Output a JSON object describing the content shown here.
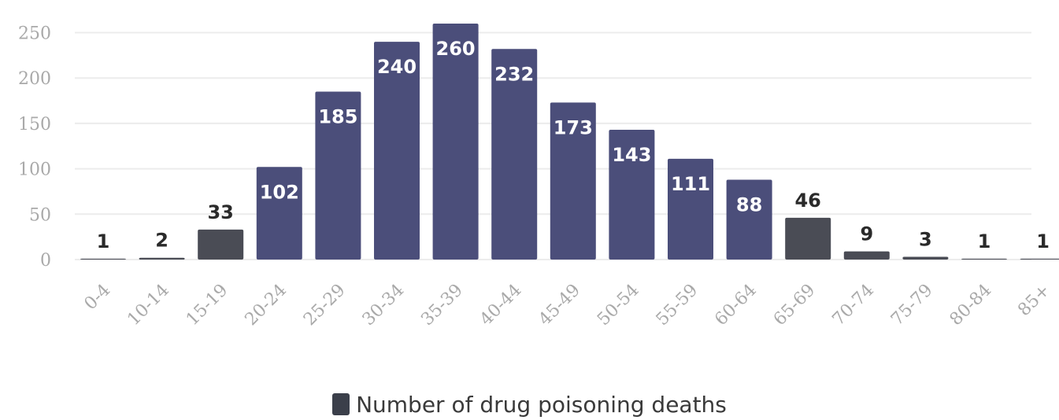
{
  "chart_data": {
    "type": "bar",
    "categories": [
      "0-4",
      "10-14",
      "15-19",
      "20-24",
      "25-29",
      "30-34",
      "35-39",
      "40-44",
      "45-49",
      "50-54",
      "55-59",
      "60-64",
      "65-69",
      "70-74",
      "75-79",
      "80-84",
      "85+"
    ],
    "values": [
      1,
      2,
      33,
      102,
      185,
      240,
      260,
      232,
      173,
      143,
      111,
      88,
      46,
      9,
      3,
      1,
      1
    ],
    "series": [
      {
        "name": "Number of drug poisoning deaths",
        "values": [
          1,
          2,
          33,
          102,
          185,
          240,
          260,
          232,
          173,
          143,
          111,
          88,
          46,
          9,
          3,
          1,
          1
        ]
      }
    ],
    "y_ticks": [
      "0",
      "50",
      "100",
      "150",
      "200",
      "250"
    ],
    "ylim": [
      0,
      260
    ],
    "grid": true,
    "legend_position": "bottom",
    "colors": {
      "bar_primary": "#4b4e7a",
      "bar_muted": "#4a4c55",
      "label_inside": "#ffffff",
      "label_outside": "#2a2a2a",
      "axis_text": "#a9a9a9",
      "grid": "#ececec"
    }
  },
  "legend": {
    "label": "Number of drug poisoning deaths"
  }
}
